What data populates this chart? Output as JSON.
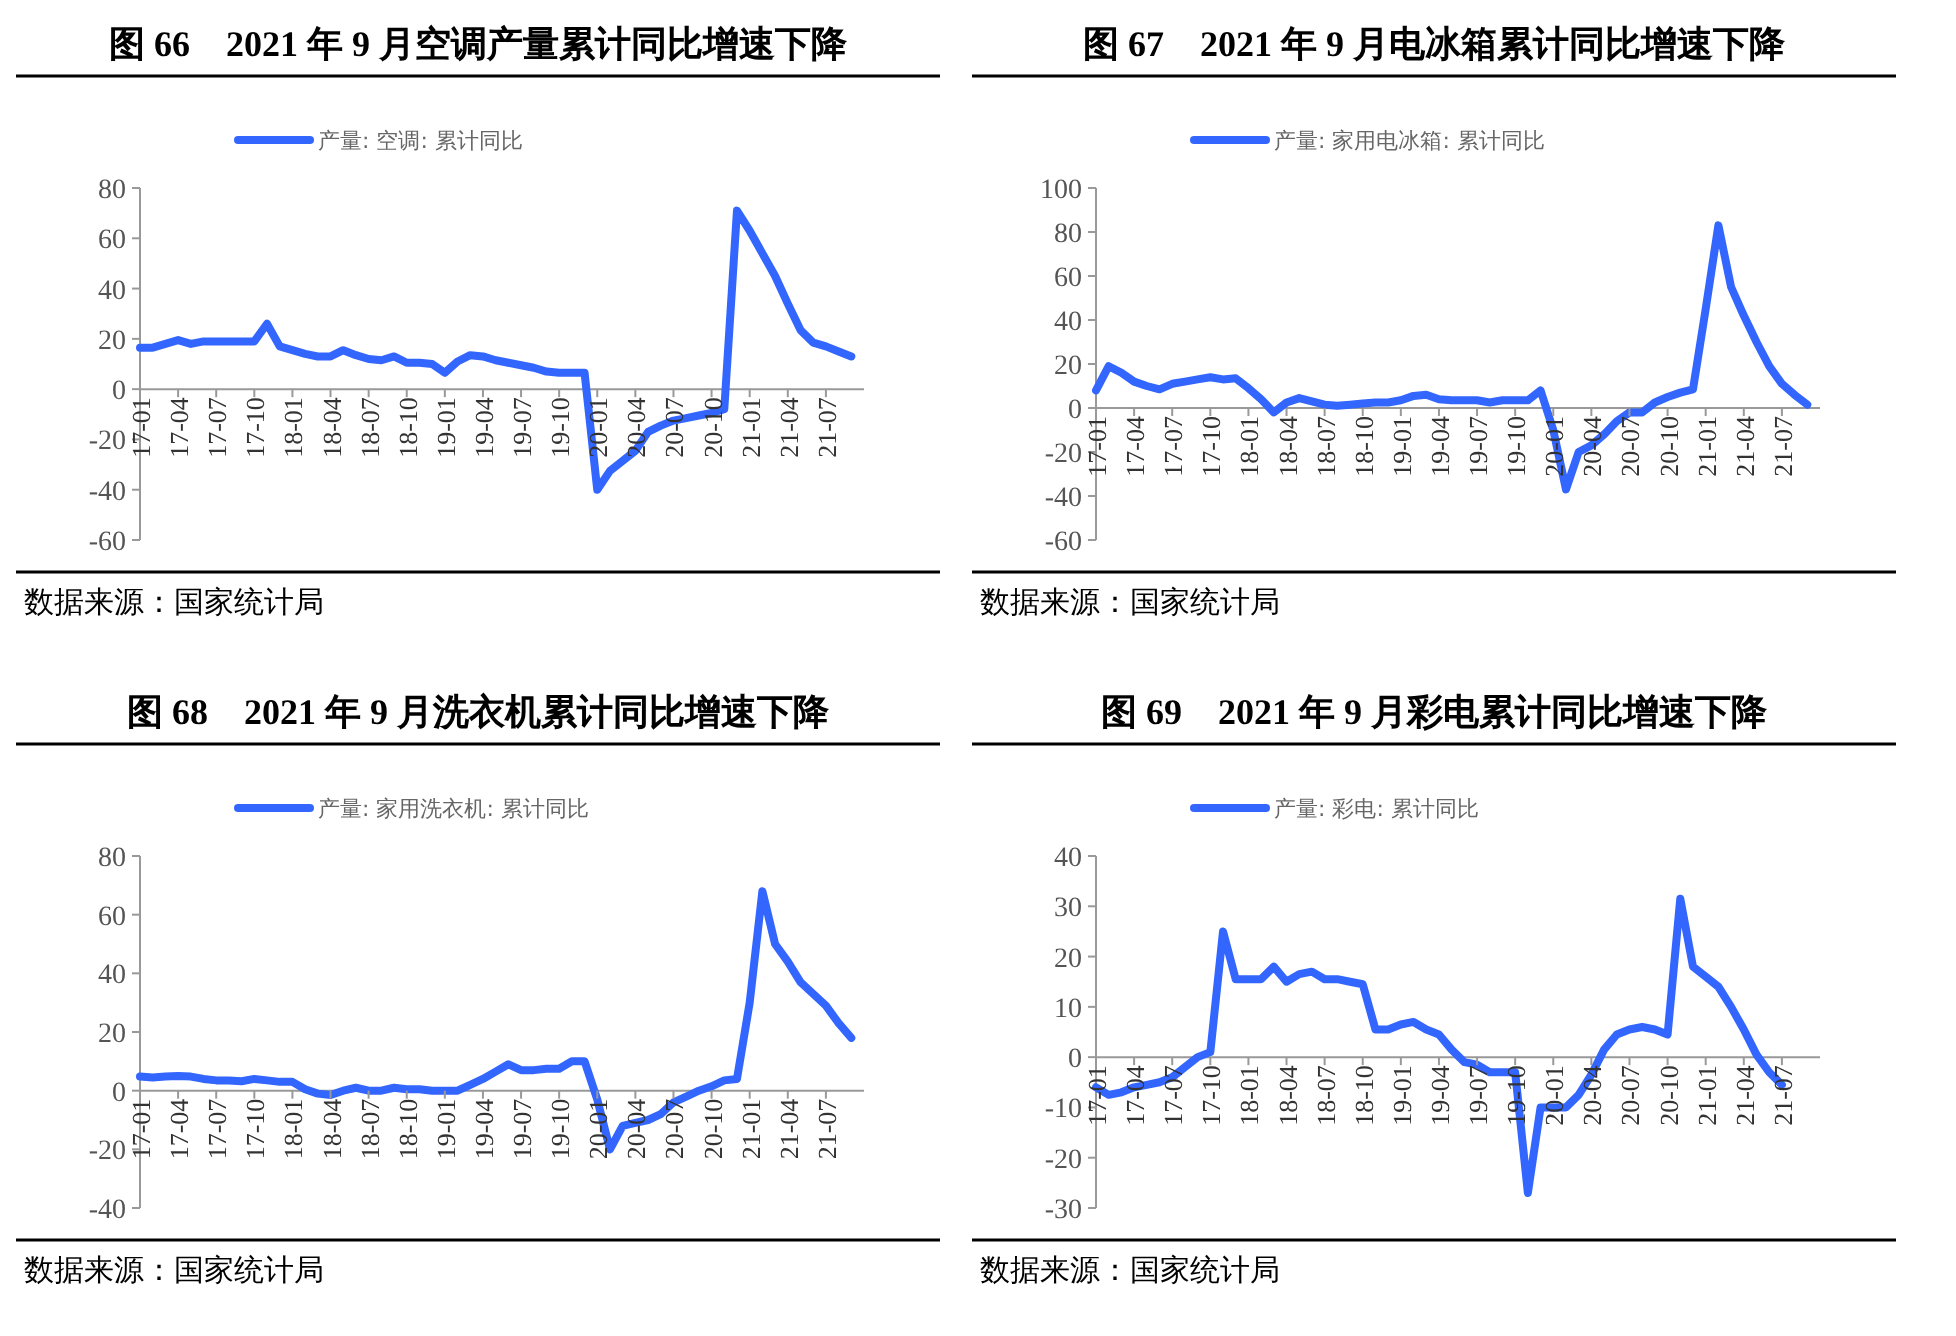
{
  "chart_data": [
    {
      "type": "line",
      "title": "图 66　2021 年 9 月空调产量累计同比增速下降",
      "legend": "top",
      "grid": false,
      "annotations": [
        "数据来源：国家统计局"
      ],
      "categories": [
        "17-01",
        null,
        null,
        "17-04",
        null,
        null,
        "17-07",
        null,
        null,
        "17-10",
        null,
        null,
        "18-01",
        null,
        null,
        "18-04",
        null,
        null,
        "18-07",
        null,
        null,
        "18-10",
        null,
        null,
        "19-01",
        null,
        null,
        "19-04",
        null,
        null,
        "19-07",
        null,
        null,
        "19-10",
        null,
        null,
        "20-01",
        null,
        null,
        "20-04",
        null,
        null,
        "20-07",
        null,
        null,
        "20-10",
        null,
        null,
        "21-01",
        null,
        null,
        "21-04",
        null,
        null,
        "21-07",
        null,
        null
      ],
      "ylim": [
        -60,
        80
      ],
      "yticks": [
        -60,
        -40,
        -20,
        0,
        20,
        40,
        60,
        80
      ],
      "series": [
        {
          "name": "产量: 空调: 累计同比",
          "color": "#3366ff",
          "values": [
            16.5,
            16.5,
            18,
            19.5,
            18,
            19,
            19,
            19,
            19,
            19,
            26,
            17,
            15.5,
            14,
            13,
            13,
            15.5,
            13.5,
            12,
            11.5,
            13,
            10.5,
            10.5,
            10,
            6.5,
            11,
            13.5,
            13,
            11.5,
            10.5,
            9.5,
            8.5,
            7,
            6.5,
            6.5,
            6.5,
            -40,
            -32.5,
            -28.5,
            -24.5,
            -17,
            -14.5,
            -12.5,
            -11.5,
            -10.5,
            -9.5,
            -8,
            71,
            63,
            54,
            45,
            34,
            23.5,
            18.5,
            17,
            15,
            13
          ]
        }
      ]
    },
    {
      "type": "line",
      "title": "图 67　2021 年 9 月电冰箱累计同比增速下降",
      "legend": "top",
      "grid": false,
      "annotations": [
        "数据来源：国家统计局"
      ],
      "categories": [
        "17-01",
        null,
        null,
        "17-04",
        null,
        null,
        "17-07",
        null,
        null,
        "17-10",
        null,
        null,
        "18-01",
        null,
        null,
        "18-04",
        null,
        null,
        "18-07",
        null,
        null,
        "18-10",
        null,
        null,
        "19-01",
        null,
        null,
        "19-04",
        null,
        null,
        "19-07",
        null,
        null,
        "19-10",
        null,
        null,
        "20-01",
        null,
        null,
        "20-04",
        null,
        null,
        "20-07",
        null,
        null,
        "20-10",
        null,
        null,
        "21-01",
        null,
        null,
        "21-04",
        null,
        null,
        "21-07",
        null,
        null
      ],
      "ylim": [
        -60,
        100
      ],
      "yticks": [
        -60,
        -40,
        -20,
        0,
        20,
        40,
        60,
        80,
        100
      ],
      "series": [
        {
          "name": "产量: 家用电冰箱: 累计同比",
          "color": "#3366ff",
          "values": [
            8,
            19,
            16,
            12,
            10,
            8.5,
            11,
            12,
            13,
            14,
            13,
            13.5,
            9,
            4,
            -2,
            2.5,
            4.5,
            3,
            1.5,
            1,
            1.5,
            2,
            2.5,
            2.5,
            3.5,
            5.5,
            6,
            4,
            3.5,
            3.5,
            3.5,
            2.5,
            3.5,
            3.5,
            3.5,
            8,
            -10,
            -37,
            -20,
            -17,
            -12,
            -6,
            -2,
            -2,
            2.5,
            5,
            7,
            8.5,
            45,
            83,
            55,
            42,
            30,
            19,
            11,
            6,
            1.5
          ]
        }
      ]
    },
    {
      "type": "line",
      "title": "图 68　2021 年 9 月洗衣机累计同比增速下降",
      "legend": "top",
      "grid": false,
      "annotations": [
        "数据来源：国家统计局"
      ],
      "categories": [
        "17-01",
        null,
        null,
        "17-04",
        null,
        null,
        "17-07",
        null,
        null,
        "17-10",
        null,
        null,
        "18-01",
        null,
        null,
        "18-04",
        null,
        null,
        "18-07",
        null,
        null,
        "18-10",
        null,
        null,
        "19-01",
        null,
        null,
        "19-04",
        null,
        null,
        "19-07",
        null,
        null,
        "19-10",
        null,
        null,
        "20-01",
        null,
        null,
        "20-04",
        null,
        null,
        "20-07",
        null,
        null,
        "20-10",
        null,
        null,
        "21-01",
        null,
        null,
        "21-04",
        null,
        null,
        "21-07",
        null,
        null
      ],
      "ylim": [
        -40,
        80
      ],
      "yticks": [
        -40,
        -20,
        0,
        20,
        40,
        60,
        80
      ],
      "series": [
        {
          "name": "产量: 家用洗衣机: 累计同比",
          "color": "#3366ff",
          "values": [
            4.8,
            4.5,
            4.8,
            5,
            4.8,
            4,
            3.5,
            3.5,
            3.2,
            4,
            3.5,
            3,
            3,
            0.5,
            -1,
            -1.5,
            0,
            1,
            0,
            0,
            1,
            0.5,
            0.5,
            0,
            0,
            0,
            2,
            4,
            6.5,
            9,
            7,
            7,
            7.5,
            7.5,
            10,
            10,
            -3,
            -20,
            -12,
            -11,
            -10,
            -8,
            -4,
            -2,
            0,
            1.5,
            3.5,
            4,
            30,
            68,
            50,
            44,
            37,
            33,
            29,
            23,
            18
          ]
        }
      ]
    },
    {
      "type": "line",
      "title": "图 69　2021 年 9 月彩电累计同比增速下降",
      "legend": "top",
      "grid": false,
      "annotations": [
        "数据来源：国家统计局"
      ],
      "categories": [
        "17-01",
        null,
        null,
        "17-04",
        null,
        null,
        "17-07",
        null,
        null,
        "17-10",
        null,
        null,
        "18-01",
        null,
        null,
        "18-04",
        null,
        null,
        "18-07",
        null,
        null,
        "18-10",
        null,
        null,
        "19-01",
        null,
        null,
        "19-04",
        null,
        null,
        "19-07",
        null,
        null,
        "19-10",
        null,
        null,
        "20-01",
        null,
        null,
        "20-04",
        null,
        null,
        "20-07",
        null,
        null,
        "20-10",
        null,
        null,
        "21-01",
        null,
        null,
        "21-04",
        null,
        null,
        "21-07",
        null,
        null
      ],
      "ylim": [
        -30,
        40
      ],
      "yticks": [
        -30,
        -20,
        -10,
        0,
        10,
        20,
        30,
        40
      ],
      "series": [
        {
          "name": "产量: 彩电: 累计同比",
          "color": "#3366ff",
          "values": [
            -6,
            -7.5,
            -7,
            -6,
            -5.5,
            -5,
            -4,
            -2,
            0,
            1,
            25,
            15.5,
            15.5,
            15.5,
            18,
            15,
            16.5,
            17,
            15.5,
            15.5,
            15,
            14.5,
            5.5,
            5.5,
            6.5,
            7,
            5.5,
            4.5,
            1.5,
            -1,
            -1.5,
            -3,
            -3,
            -3,
            -27,
            -10,
            -10,
            -10,
            -7.5,
            -3.5,
            1.5,
            4.5,
            5.5,
            6,
            5.5,
            4.5,
            31.5,
            18,
            16,
            14,
            10,
            5.5,
            0.5,
            -3,
            -5.5,
            null,
            null
          ]
        }
      ]
    }
  ]
}
